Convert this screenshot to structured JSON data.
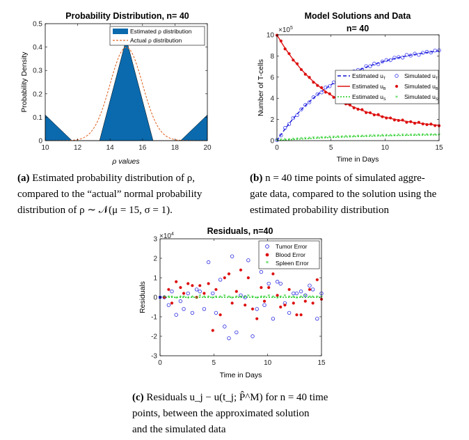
{
  "panels": {
    "a": {
      "caption_tag": "(a)",
      "caption_line1": "Estimated probability distribution of ρ,",
      "caption_line2": "compared to the “actual” normal probability",
      "caption_line3": "distribution of ρ ∼ 𝒩(μ = 15, σ = 1).",
      "chart_data": {
        "type": "area",
        "title": "Probability Distribution, n= 40",
        "xlabel": "ρ values",
        "ylabel": "Probability Density",
        "xlim": [
          10,
          20
        ],
        "ylim": [
          0,
          0.5
        ],
        "xticks": [
          "10",
          "12",
          "14",
          "16",
          "18",
          "20"
        ],
        "yticks": [
          "0",
          "0.1",
          "0.2",
          "0.3",
          "0.4",
          "0.5"
        ],
        "legend": [
          "Estimated ρ distribution",
          "Actual ρ distribution"
        ],
        "estimated": {
          "x": [
            10,
            11.65,
            13.35,
            15,
            16.65,
            18.35,
            20
          ],
          "y": [
            0.11,
            0,
            0,
            0.435,
            0,
            0,
            0.11
          ]
        },
        "actual": {
          "mu": 15,
          "sigma": 1,
          "x_range": [
            10,
            20
          ]
        },
        "colors": {
          "estimated": "#0b6aad",
          "actual": "#e06a2c"
        }
      }
    },
    "b": {
      "caption_tag": "(b)",
      "caption_line1": "n = 40 time points of simulated aggre-",
      "caption_line2": "gate data, compared to the solution using the",
      "caption_line3": "estimated probability distribution",
      "chart_data": {
        "type": "line",
        "title_line1": "Model Solutions and Data",
        "title_line2": "n= 40",
        "xlabel": "Time in Days",
        "ylabel": "Number of T-cells",
        "y_exponent": "×10",
        "y_exponent_power": "5",
        "xlim": [
          0,
          15
        ],
        "ylim": [
          0,
          10
        ],
        "xticks": [
          "0",
          "5",
          "10",
          "15"
        ],
        "yticks": [
          "0",
          "2",
          "4",
          "6",
          "8",
          "10"
        ],
        "legend": [
          {
            "label": "Estimated u",
            "sub": "T"
          },
          {
            "label": "Simulated u",
            "sub": "T"
          },
          {
            "label": "Estimated u",
            "sub": "B"
          },
          {
            "label": "Simulated u",
            "sub": "B"
          },
          {
            "label": "Estimated u",
            "sub": "S"
          },
          {
            "label": "Simulated u",
            "sub": "S"
          }
        ],
        "series": [
          {
            "name": "Estimated uT",
            "model": "9.2*(1-exp(-0.17*t))",
            "color": "#1010d0"
          },
          {
            "name": "Estimated uB",
            "model": "1+9*exp(-0.2*t)",
            "color": "#dd1111"
          },
          {
            "name": "Estimated uS",
            "model": "0.65*(1-exp(-0.12*t))",
            "color": "#22cc22"
          }
        ],
        "n_points": 40,
        "t_range": [
          0.375,
          15
        ]
      }
    },
    "c": {
      "caption_tag": "(c)",
      "caption_line1": "Residuals u_j − u(t_j; P̂^M) for n = 40 time",
      "caption_line2": "points, between the approximated solution",
      "caption_line3": "and the simulated data",
      "chart_data": {
        "type": "scatter",
        "title": "Residuals, n=40",
        "xlabel": "Time in Days",
        "ylabel": "Residuals",
        "y_exponent": "×10",
        "y_exponent_power": "4",
        "xlim": [
          0,
          15
        ],
        "ylim": [
          -3,
          3
        ],
        "xticks": [
          "0",
          "5",
          "10",
          "15"
        ],
        "yticks": [
          "-3",
          "-2",
          "-1",
          "0",
          "1",
          "2",
          "3"
        ],
        "legend": [
          "Tumor Error",
          "Blood Error",
          "Spleen Error"
        ],
        "tumor_error": [
          [
            0.4,
            0.0
          ],
          [
            0.8,
            -0.4
          ],
          [
            1.1,
            0.3
          ],
          [
            1.5,
            -0.9
          ],
          [
            1.9,
            -0.2
          ],
          [
            2.2,
            -0.6
          ],
          [
            2.6,
            0.2
          ],
          [
            3.0,
            -0.8
          ],
          [
            3.4,
            0.4
          ],
          [
            3.7,
            0.3
          ],
          [
            4.1,
            -0.6
          ],
          [
            4.5,
            1.8
          ],
          [
            4.9,
            0.2
          ],
          [
            5.2,
            -0.8
          ],
          [
            5.6,
            0.9
          ],
          [
            6.0,
            -1.5
          ],
          [
            6.4,
            -2.1
          ],
          [
            6.7,
            2.1
          ],
          [
            7.1,
            -1.8
          ],
          [
            7.5,
            0.1
          ],
          [
            7.9,
            0.0
          ],
          [
            8.2,
            1.9
          ],
          [
            8.6,
            -2.0
          ],
          [
            9.0,
            -0.6
          ],
          [
            9.4,
            1.3
          ],
          [
            9.7,
            -0.4
          ],
          [
            10.1,
            0.7
          ],
          [
            10.5,
            -1.1
          ],
          [
            10.9,
            0.8
          ],
          [
            11.2,
            0.7
          ],
          [
            11.6,
            -0.3
          ],
          [
            12.0,
            -0.8
          ],
          [
            12.4,
            0.2
          ],
          [
            12.7,
            0.2
          ],
          [
            13.1,
            0.3
          ],
          [
            13.5,
            0.1
          ],
          [
            13.9,
            0.6
          ],
          [
            14.2,
            0.4
          ],
          [
            14.6,
            -1.1
          ],
          [
            15.0,
            0.2
          ]
        ],
        "blood_error": [
          [
            0.4,
            0.0
          ],
          [
            0.8,
            0.4
          ],
          [
            1.1,
            -0.3
          ],
          [
            1.5,
            0.8
          ],
          [
            1.9,
            0.5
          ],
          [
            2.2,
            0.2
          ],
          [
            2.6,
            0.7
          ],
          [
            3.0,
            0.6
          ],
          [
            3.4,
            0.0
          ],
          [
            3.7,
            0.6
          ],
          [
            4.1,
            0.2
          ],
          [
            4.5,
            0.7
          ],
          [
            4.9,
            -1.7
          ],
          [
            5.2,
            0.4
          ],
          [
            5.6,
            -0.9
          ],
          [
            6.0,
            1.0
          ],
          [
            6.4,
            1.2
          ],
          [
            6.7,
            -0.3
          ],
          [
            7.1,
            0.3
          ],
          [
            7.5,
            1.4
          ],
          [
            7.9,
            -0.4
          ],
          [
            8.2,
            1.0
          ],
          [
            8.6,
            -0.6
          ],
          [
            9.0,
            -1.1
          ],
          [
            9.4,
            0.5
          ],
          [
            9.7,
            -0.2
          ],
          [
            10.1,
            0.5
          ],
          [
            10.5,
            1.2
          ],
          [
            10.9,
            0.1
          ],
          [
            11.2,
            -0.5
          ],
          [
            11.6,
            -0.4
          ],
          [
            12.0,
            0.4
          ],
          [
            12.4,
            -0.3
          ],
          [
            12.7,
            -0.9
          ],
          [
            13.1,
            -0.9
          ],
          [
            13.5,
            -0.2
          ],
          [
            13.9,
            0.4
          ],
          [
            14.2,
            -0.3
          ],
          [
            14.6,
            0.9
          ],
          [
            15.0,
            -0.1
          ]
        ],
        "spleen_error": [
          [
            0.4,
            0.0
          ],
          [
            0.8,
            0.0
          ],
          [
            1.1,
            0.0
          ],
          [
            1.5,
            -0.05
          ],
          [
            1.9,
            0.0
          ],
          [
            2.2,
            0.0
          ],
          [
            2.6,
            -0.05
          ],
          [
            3.0,
            0.0
          ],
          [
            3.4,
            -0.05
          ],
          [
            3.7,
            0.05
          ],
          [
            4.1,
            0.0
          ],
          [
            4.5,
            0.0
          ],
          [
            4.9,
            -0.05
          ],
          [
            5.2,
            0.0
          ],
          [
            5.6,
            0.0
          ],
          [
            6.0,
            0.05
          ],
          [
            6.4,
            0.0
          ],
          [
            6.7,
            -0.05
          ],
          [
            7.1,
            0.0
          ],
          [
            7.5,
            0.0
          ],
          [
            7.9,
            0.0
          ],
          [
            8.2,
            0.05
          ],
          [
            8.6,
            0.0
          ],
          [
            9.0,
            -0.05
          ],
          [
            9.4,
            0.0
          ],
          [
            9.7,
            0.0
          ],
          [
            10.1,
            0.05
          ],
          [
            10.5,
            0.0
          ],
          [
            10.9,
            -0.05
          ],
          [
            11.2,
            0.0
          ],
          [
            11.6,
            0.05
          ],
          [
            12.0,
            0.0
          ],
          [
            12.4,
            0.0
          ],
          [
            12.7,
            -0.05
          ],
          [
            13.1,
            0.0
          ],
          [
            13.5,
            0.05
          ],
          [
            13.9,
            0.0
          ],
          [
            14.2,
            0.0
          ],
          [
            14.6,
            0.0
          ],
          [
            15.0,
            0.0
          ]
        ],
        "colors": {
          "tumor": "#2a2ae0",
          "blood": "#dd1111",
          "spleen": "#22cc22",
          "zero_line": "#22cc22"
        }
      }
    }
  }
}
